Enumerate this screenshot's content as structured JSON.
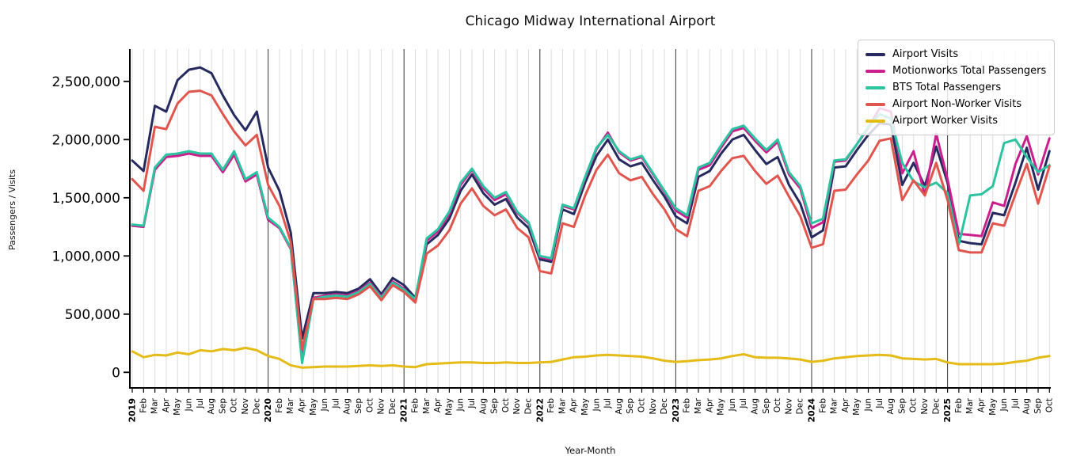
{
  "figure": {
    "background": "#ffffff"
  },
  "chart_data": {
    "type": "line",
    "title": "Chicago Midway International Airport",
    "xlabel": "Year-Month",
    "ylabel": "Passengers / Visits",
    "legend_position": "upper right",
    "grid": {
      "vertical_monthly": true,
      "year_separator_lines": [
        "2020",
        "2021",
        "2022",
        "2023",
        "2024",
        "2025"
      ]
    },
    "ylim": [
      -135000,
      2780000
    ],
    "y_ticks": [
      {
        "value": 0,
        "label": "0"
      },
      {
        "value": 500000,
        "label": "500,000"
      },
      {
        "value": 1000000,
        "label": "1,000,000"
      },
      {
        "value": 1500000,
        "label": "1,500,000"
      },
      {
        "value": 2000000,
        "label": "2,000,000"
      },
      {
        "value": 2500000,
        "label": "2,500,000"
      }
    ],
    "x_labels": [
      "2019",
      "Feb",
      "Mar",
      "Apr",
      "May",
      "Jun",
      "Jul",
      "Aug",
      "Sep",
      "Oct",
      "Nov",
      "Dec",
      "2020",
      "Feb",
      "Mar",
      "Apr",
      "May",
      "Jun",
      "Jul",
      "Aug",
      "Sep",
      "Oct",
      "Nov",
      "Dec",
      "2021",
      "Feb",
      "Mar",
      "Apr",
      "May",
      "Jun",
      "Jul",
      "Aug",
      "Sep",
      "Oct",
      "Nov",
      "Dec",
      "2022",
      "Feb",
      "Mar",
      "Apr",
      "May",
      "Jun",
      "Jul",
      "Aug",
      "Sep",
      "Oct",
      "Nov",
      "Dec",
      "2023",
      "Feb",
      "Mar",
      "Apr",
      "May",
      "Jun",
      "Jul",
      "Aug",
      "Sep",
      "Oct",
      "Nov",
      "Dec",
      "2024",
      "Feb",
      "Mar",
      "Apr",
      "May",
      "Jun",
      "Jul",
      "Aug",
      "Sep",
      "Oct",
      "Nov",
      "Dec",
      "2025",
      "Feb",
      "Mar",
      "Apr",
      "May",
      "Jun",
      "Jul",
      "Aug",
      "Sep",
      "Oct"
    ],
    "series": [
      {
        "name": "Airport Visits",
        "color": "#262a5e",
        "values": [
          1820000,
          1730000,
          2290000,
          2240000,
          2510000,
          2600000,
          2620000,
          2570000,
          2380000,
          2210000,
          2080000,
          2240000,
          1760000,
          1560000,
          1200000,
          290000,
          680000,
          680000,
          690000,
          680000,
          720000,
          800000,
          670000,
          810000,
          750000,
          640000,
          1100000,
          1180000,
          1320000,
          1560000,
          1700000,
          1540000,
          1440000,
          1490000,
          1330000,
          1240000,
          970000,
          950000,
          1400000,
          1360000,
          1630000,
          1860000,
          2000000,
          1830000,
          1770000,
          1800000,
          1650000,
          1510000,
          1340000,
          1280000,
          1680000,
          1730000,
          1880000,
          2000000,
          2040000,
          1910000,
          1790000,
          1850000,
          1610000,
          1450000,
          1160000,
          1220000,
          1760000,
          1770000,
          1910000,
          2040000,
          2140000,
          2130000,
          1610000,
          1800000,
          1600000,
          1940000,
          1630000,
          1130000,
          1110000,
          1100000,
          1370000,
          1350000,
          1630000,
          1930000,
          1570000,
          1900000
        ]
      },
      {
        "name": "Motionworks Total Passengers",
        "color": "#cb1f8d",
        "values": [
          1260000,
          1250000,
          1740000,
          1850000,
          1860000,
          1880000,
          1860000,
          1860000,
          1720000,
          1870000,
          1640000,
          1700000,
          1310000,
          1240000,
          1060000,
          130000,
          640000,
          660000,
          670000,
          660000,
          700000,
          770000,
          650000,
          780000,
          720000,
          610000,
          1130000,
          1210000,
          1360000,
          1610000,
          1740000,
          1580000,
          1480000,
          1530000,
          1370000,
          1280000,
          990000,
          970000,
          1430000,
          1400000,
          1670000,
          1920000,
          2060000,
          1890000,
          1820000,
          1850000,
          1700000,
          1550000,
          1390000,
          1330000,
          1740000,
          1780000,
          1930000,
          2070000,
          2100000,
          1990000,
          1890000,
          1980000,
          1700000,
          1580000,
          1240000,
          1290000,
          1810000,
          1820000,
          1960000,
          2100000,
          2270000,
          2240000,
          1710000,
          1900000,
          1520000,
          2050000,
          1660000,
          1190000,
          1180000,
          1170000,
          1460000,
          1430000,
          1790000,
          2030000,
          1700000,
          2010000
        ]
      },
      {
        "name": "BTS Total Passengers",
        "color": "#2bc3a0",
        "values": [
          1270000,
          1260000,
          1760000,
          1870000,
          1880000,
          1900000,
          1880000,
          1880000,
          1740000,
          1900000,
          1660000,
          1720000,
          1330000,
          1250000,
          1070000,
          80000,
          630000,
          650000,
          660000,
          650000,
          690000,
          760000,
          640000,
          770000,
          710000,
          630000,
          1150000,
          1230000,
          1380000,
          1630000,
          1750000,
          1600000,
          1500000,
          1550000,
          1380000,
          1290000,
          1000000,
          980000,
          1440000,
          1410000,
          1680000,
          1930000,
          2040000,
          1900000,
          1830000,
          1860000,
          1710000,
          1560000,
          1410000,
          1350000,
          1760000,
          1800000,
          1950000,
          2090000,
          2120000,
          2010000,
          1910000,
          2000000,
          1720000,
          1600000,
          1280000,
          1320000,
          1820000,
          1830000,
          1960000,
          2110000,
          2220000,
          2180000,
          1800000,
          1640000,
          1590000,
          1630000,
          1540000,
          1100000,
          1520000,
          1530000,
          1600000,
          1970000,
          2000000,
          1850000,
          1720000,
          1780000
        ]
      },
      {
        "name": "Airport Non-Worker Visits",
        "color": "#e0564f",
        "values": [
          1660000,
          1560000,
          2110000,
          2090000,
          2310000,
          2410000,
          2420000,
          2380000,
          2220000,
          2070000,
          1950000,
          2040000,
          1610000,
          1430000,
          1120000,
          200000,
          630000,
          630000,
          640000,
          630000,
          670000,
          740000,
          620000,
          750000,
          690000,
          600000,
          1020000,
          1090000,
          1220000,
          1450000,
          1580000,
          1430000,
          1350000,
          1400000,
          1240000,
          1160000,
          870000,
          850000,
          1280000,
          1250000,
          1520000,
          1740000,
          1870000,
          1710000,
          1650000,
          1680000,
          1530000,
          1400000,
          1230000,
          1170000,
          1560000,
          1600000,
          1730000,
          1840000,
          1860000,
          1730000,
          1620000,
          1690000,
          1510000,
          1340000,
          1070000,
          1100000,
          1560000,
          1570000,
          1700000,
          1820000,
          1990000,
          2010000,
          1480000,
          1650000,
          1520000,
          1800000,
          1480000,
          1050000,
          1030000,
          1030000,
          1280000,
          1260000,
          1530000,
          1790000,
          1450000,
          1770000
        ]
      },
      {
        "name": "Airport Worker Visits",
        "color": "#e4bb17",
        "values": [
          180000,
          130000,
          150000,
          145000,
          170000,
          155000,
          190000,
          180000,
          200000,
          190000,
          210000,
          190000,
          140000,
          115000,
          60000,
          40000,
          45000,
          50000,
          50000,
          50000,
          55000,
          60000,
          55000,
          60000,
          50000,
          45000,
          70000,
          75000,
          80000,
          85000,
          85000,
          80000,
          80000,
          85000,
          80000,
          80000,
          85000,
          90000,
          110000,
          130000,
          135000,
          145000,
          150000,
          145000,
          140000,
          135000,
          120000,
          100000,
          90000,
          95000,
          105000,
          110000,
          120000,
          140000,
          155000,
          130000,
          125000,
          125000,
          120000,
          110000,
          90000,
          100000,
          120000,
          130000,
          140000,
          145000,
          150000,
          145000,
          120000,
          115000,
          110000,
          115000,
          85000,
          70000,
          70000,
          70000,
          70000,
          75000,
          90000,
          100000,
          125000,
          140000
        ]
      }
    ]
  }
}
